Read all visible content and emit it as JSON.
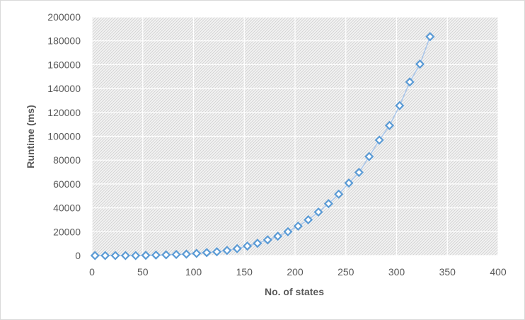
{
  "chart_data": {
    "type": "scatter",
    "xlabel": "No. of states",
    "ylabel": "Runtime (ms)",
    "xlim": [
      0,
      400
    ],
    "ylim": [
      0,
      200000
    ],
    "x_ticks": [
      0,
      50,
      100,
      150,
      200,
      250,
      300,
      350,
      400
    ],
    "y_ticks": [
      0,
      20000,
      40000,
      60000,
      80000,
      100000,
      120000,
      140000,
      160000,
      180000,
      200000
    ],
    "grid": true,
    "legend": "none",
    "marker": "diamond",
    "marker_color": "#5b9bd5",
    "line_color": "#a9c6ea",
    "plot_fill": "hatched-gray",
    "series": [
      {
        "points": [
          [
            3,
            0
          ],
          [
            13,
            0
          ],
          [
            23,
            0
          ],
          [
            33,
            0
          ],
          [
            43,
            0
          ],
          [
            53,
            200
          ],
          [
            63,
            400
          ],
          [
            73,
            600
          ],
          [
            83,
            900
          ],
          [
            93,
            1200
          ],
          [
            103,
            1800
          ],
          [
            113,
            2500
          ],
          [
            123,
            3200
          ],
          [
            133,
            4300
          ],
          [
            143,
            5800
          ],
          [
            153,
            8000
          ],
          [
            163,
            10300
          ],
          [
            173,
            13200
          ],
          [
            183,
            16200
          ],
          [
            193,
            20000
          ],
          [
            203,
            24700
          ],
          [
            213,
            30000
          ],
          [
            223,
            36500
          ],
          [
            233,
            43500
          ],
          [
            243,
            51500
          ],
          [
            253,
            60800
          ],
          [
            263,
            69700
          ],
          [
            273,
            83000
          ],
          [
            283,
            96800
          ],
          [
            293,
            109000
          ],
          [
            303,
            125700
          ],
          [
            313,
            145500
          ],
          [
            323,
            160500
          ],
          [
            333,
            183500
          ]
        ]
      }
    ]
  }
}
